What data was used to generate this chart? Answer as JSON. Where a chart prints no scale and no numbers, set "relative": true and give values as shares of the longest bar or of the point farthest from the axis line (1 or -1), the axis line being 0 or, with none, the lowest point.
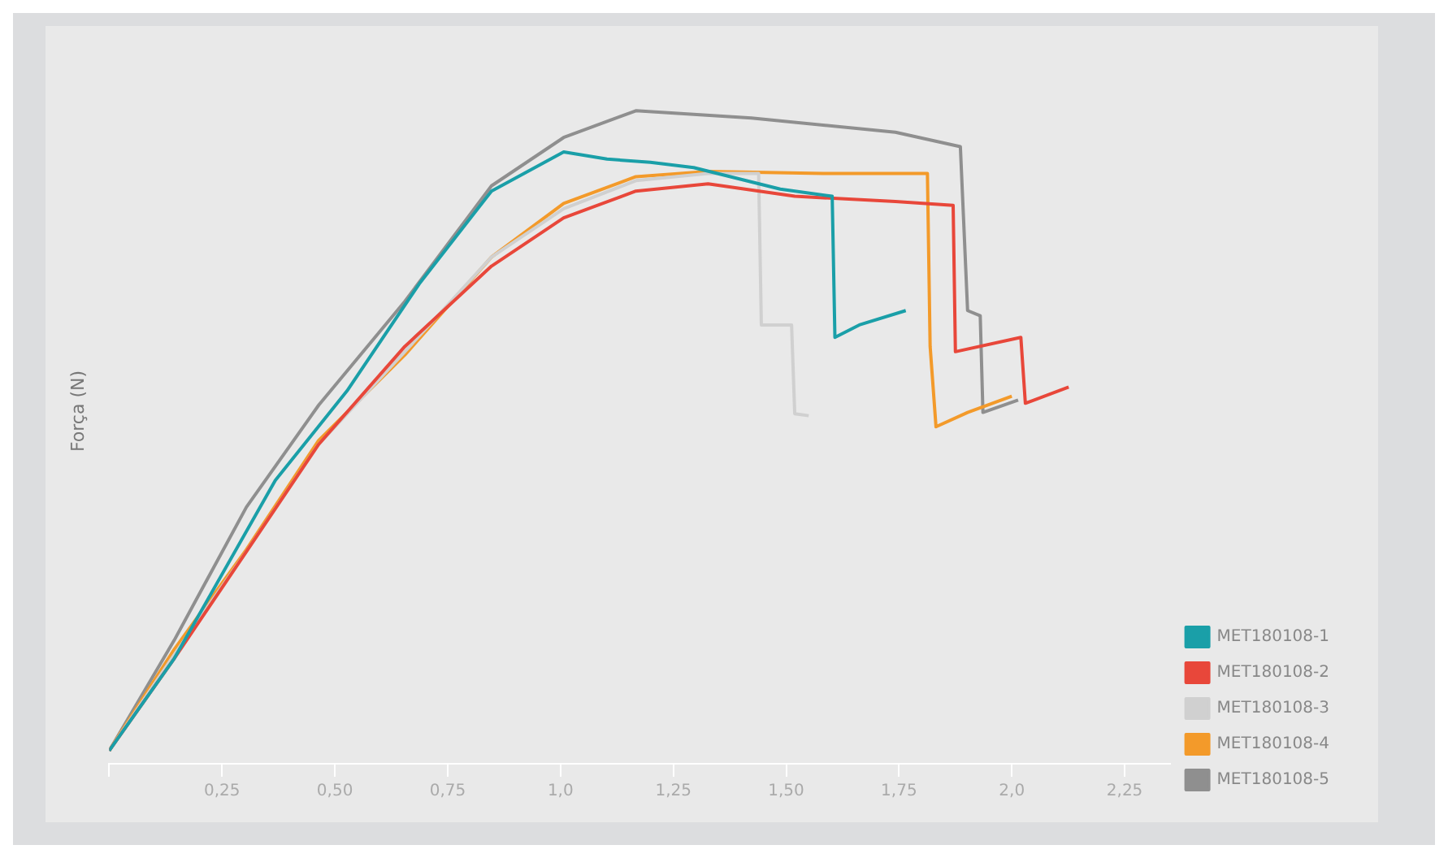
{
  "chart_data": {
    "type": "line",
    "ylabel": "Força (N)",
    "relative": true,
    "xlim": [
      0,
      2.35
    ],
    "xticks": [
      {
        "value": 0,
        "label": null
      },
      {
        "value": 0.25,
        "label": "0,25"
      },
      {
        "value": 0.5,
        "label": "0,50"
      },
      {
        "value": 0.75,
        "label": "0,75"
      },
      {
        "value": 1,
        "label": "1,0"
      },
      {
        "value": 1.25,
        "label": "1,25"
      },
      {
        "value": 1.5,
        "label": "1,50"
      },
      {
        "value": 1.75,
        "label": "1,75"
      },
      {
        "value": 2,
        "label": "2,0"
      },
      {
        "value": 2.25,
        "label": "2,25"
      }
    ],
    "legend": "bottom right",
    "marker": "none",
    "line_style": "solid",
    "series": [
      {
        "name": "MET180108-1",
        "color": "#1a9fa8",
        "x": [
          0,
          0.144,
          0.368,
          0.527,
          0.687,
          0.847,
          1.007,
          1.103,
          1.199,
          1.295,
          1.487,
          1.602,
          1.608,
          1.662,
          1.765
        ],
        "values": [
          0.02,
          0.161,
          0.434,
          0.571,
          0.735,
          0.877,
          0.937,
          0.926,
          0.921,
          0.913,
          0.88,
          0.869,
          0.653,
          0.672,
          0.694
        ]
      },
      {
        "name": "MET180108-2",
        "color": "#e8473a",
        "x": [
          0,
          0.144,
          0.304,
          0.464,
          0.655,
          0.847,
          1.007,
          1.167,
          1.327,
          1.519,
          1.742,
          1.87,
          1.875,
          2.02,
          2.03,
          2.126
        ],
        "values": [
          0.02,
          0.161,
          0.325,
          0.489,
          0.639,
          0.762,
          0.836,
          0.877,
          0.888,
          0.869,
          0.861,
          0.855,
          0.631,
          0.653,
          0.552,
          0.577
        ]
      },
      {
        "name": "MET180108-3",
        "color": "#d0d0d0",
        "x": [
          0,
          0.144,
          0.304,
          0.464,
          0.655,
          0.847,
          1.007,
          1.167,
          1.327,
          1.439,
          1.445,
          1.512,
          1.519,
          1.55
        ],
        "values": [
          0.02,
          0.167,
          0.325,
          0.489,
          0.631,
          0.776,
          0.85,
          0.893,
          0.904,
          0.904,
          0.672,
          0.672,
          0.536,
          0.533
        ]
      },
      {
        "name": "MET180108-4",
        "color": "#f39a2a",
        "x": [
          0,
          0.144,
          0.304,
          0.464,
          0.655,
          0.847,
          1.007,
          1.167,
          1.327,
          1.582,
          1.813,
          1.819,
          1.832,
          1.902,
          2.0
        ],
        "values": [
          0.02,
          0.175,
          0.328,
          0.495,
          0.626,
          0.776,
          0.858,
          0.899,
          0.907,
          0.904,
          0.904,
          0.639,
          0.516,
          0.538,
          0.563
        ]
      },
      {
        "name": "MET180108-5",
        "color": "#8f8f8f",
        "x": [
          0,
          0.144,
          0.304,
          0.464,
          0.655,
          0.847,
          1.007,
          1.167,
          1.423,
          1.742,
          1.886,
          1.902,
          1.93,
          1.936,
          2.014
        ],
        "values": [
          0.02,
          0.189,
          0.393,
          0.549,
          0.708,
          0.885,
          0.959,
          1.0,
          0.989,
          0.967,
          0.945,
          0.694,
          0.686,
          0.538,
          0.557
        ]
      }
    ]
  }
}
